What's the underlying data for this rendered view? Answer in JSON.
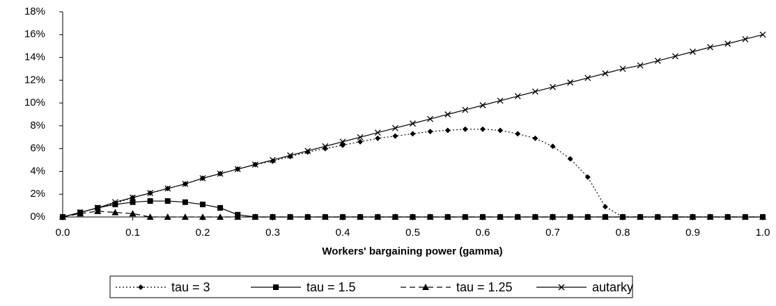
{
  "chart_data": {
    "type": "line",
    "xlabel": "Workers' bargaining power (gamma)",
    "x": [
      0,
      0.025,
      0.05,
      0.075,
      0.1,
      0.125,
      0.15,
      0.175,
      0.2,
      0.225,
      0.25,
      0.275,
      0.3,
      0.325,
      0.35,
      0.375,
      0.4,
      0.425,
      0.45,
      0.475,
      0.5,
      0.525,
      0.55,
      0.575,
      0.6,
      0.625,
      0.65,
      0.675,
      0.7,
      0.725,
      0.75,
      0.775,
      0.8,
      0.825,
      0.85,
      0.875,
      0.9,
      0.925,
      0.95,
      0.975,
      1
    ],
    "series": [
      {
        "name": "tau = 3",
        "color": "#000000",
        "dash": "dotted",
        "marker": "diamond",
        "values": [
          0,
          0.4,
          0.8,
          1.2,
          1.7,
          2.1,
          2.5,
          2.9,
          3.4,
          3.8,
          4.2,
          4.6,
          4.9,
          5.3,
          5.7,
          6.0,
          6.3,
          6.6,
          6.9,
          7.1,
          7.3,
          7.5,
          7.6,
          7.7,
          7.7,
          7.6,
          7.3,
          6.9,
          6.2,
          5.1,
          3.5,
          0.9,
          0,
          0,
          0,
          0,
          0,
          0,
          0,
          0,
          0
        ]
      },
      {
        "name": "tau = 1.5",
        "color": "#000000",
        "dash": "solid",
        "marker": "square",
        "values": [
          0,
          0.4,
          0.8,
          1.1,
          1.3,
          1.4,
          1.4,
          1.3,
          1.1,
          0.8,
          0.2,
          0,
          0,
          0,
          0,
          0,
          0,
          0,
          0,
          0,
          0,
          0,
          0,
          0,
          0,
          0,
          0,
          0,
          0,
          0,
          0,
          0,
          0,
          0,
          0,
          0,
          0,
          0,
          0,
          0,
          0
        ]
      },
      {
        "name": "tau = 1.25",
        "color": "#000000",
        "dash": "dashed",
        "marker": "triangle",
        "values": [
          0,
          0.3,
          0.5,
          0.4,
          0.3,
          0,
          0,
          0,
          0,
          0,
          0,
          0,
          0,
          0,
          0,
          0,
          0,
          0,
          0,
          0,
          0,
          0,
          0,
          0,
          0,
          0,
          0,
          0,
          0,
          0,
          0,
          0,
          0,
          0,
          0,
          0,
          0,
          0,
          0,
          0,
          0
        ]
      },
      {
        "name": "autarky",
        "color": "#000000",
        "dash": "solid",
        "marker": "x",
        "values": [
          0,
          0.4,
          0.8,
          1.3,
          1.7,
          2.1,
          2.5,
          2.9,
          3.4,
          3.8,
          4.2,
          4.6,
          5.0,
          5.4,
          5.8,
          6.2,
          6.6,
          7.0,
          7.4,
          7.8,
          8.2,
          8.6,
          9.0,
          9.4,
          9.8,
          10.2,
          10.6,
          11.0,
          11.4,
          11.8,
          12.2,
          12.6,
          13.0,
          13.3,
          13.7,
          14.1,
          14.5,
          14.9,
          15.2,
          15.6,
          16.0
        ]
      }
    ],
    "xlim": [
      0,
      1
    ],
    "xticks": [
      {
        "value": 0,
        "label": "0.0"
      },
      0.1,
      0.2,
      0.3,
      0.4,
      0.5,
      0.6,
      0.7,
      0.8,
      0.9,
      {
        "value": 1,
        "label": "1.0"
      }
    ],
    "ylim": [
      0,
      18
    ],
    "yticks": [
      {
        "value": 0,
        "label": "0%"
      },
      {
        "value": 2,
        "label": "2%"
      },
      {
        "value": 4,
        "label": "4%"
      },
      {
        "value": 6,
        "label": "6%"
      },
      {
        "value": 8,
        "label": "8%"
      },
      {
        "value": 10,
        "label": "10%"
      },
      {
        "value": 12,
        "label": "12%"
      },
      {
        "value": 14,
        "label": "14%"
      },
      {
        "value": 16,
        "label": "16%"
      },
      {
        "value": 18,
        "label": "18%"
      }
    ],
    "grid": false,
    "legend": "bottom"
  }
}
